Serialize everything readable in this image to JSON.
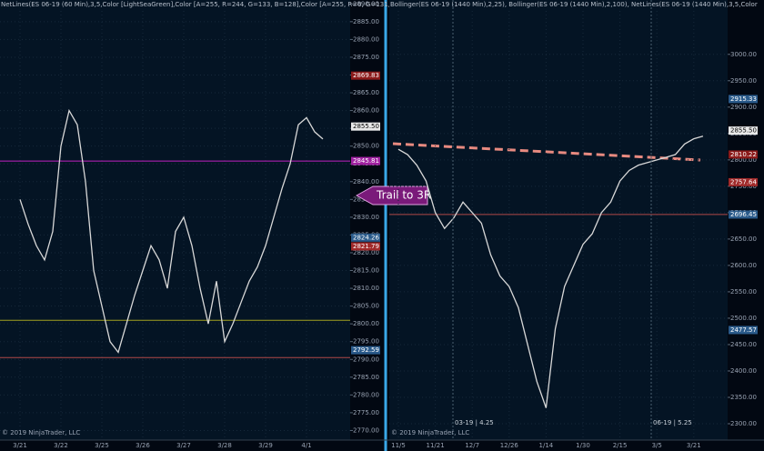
{
  "chart_data": [
    {
      "type": "line",
      "title": "NetLines(ES 06-19 (60 Min),3,5,Color [LightSeaGreen],Color [A=255, R=244, G=133, B=128],Color [A=255, R=0, G=131,",
      "footer": "© 2019 NinjaTrader, LLC",
      "annotations": [
        "Trail to 3R"
      ],
      "categories": [
        "3/21",
        null,
        null,
        null,
        null,
        "3/22",
        null,
        null,
        null,
        null,
        "3/25",
        null,
        null,
        null,
        null,
        "3/26",
        null,
        null,
        null,
        null,
        "3/27",
        null,
        null,
        null,
        null,
        "3/28",
        null,
        null,
        null,
        null,
        "3/29",
        null,
        null,
        null,
        null,
        "4/1",
        null,
        null
      ],
      "values": [
        2835,
        2828,
        2822,
        2818,
        2826,
        2850,
        2860,
        2856,
        2840,
        2815,
        2805,
        2795,
        2792,
        2800,
        2808,
        2815,
        2822,
        2818,
        2810,
        2826,
        2830,
        2822,
        2810,
        2800,
        2812,
        2795,
        2800,
        2806,
        2812,
        2816,
        2822,
        2830,
        2838,
        2845,
        2856,
        2858,
        2854,
        2852
      ],
      "color": "#d8d8d8",
      "ylim": [
        2767.3,
        2891.1
      ],
      "yticks": [
        {
          "value": 2770,
          "label": "2770.00"
        },
        {
          "value": 2775,
          "label": "2775.00"
        },
        {
          "value": 2780,
          "label": "2780.00"
        },
        {
          "value": 2785,
          "label": "2785.00"
        },
        {
          "value": 2790,
          "label": "2790.00"
        },
        {
          "value": 2795,
          "label": "2795.00"
        },
        {
          "value": 2800,
          "label": "2800.00"
        },
        {
          "value": 2805,
          "label": "2805.00"
        },
        {
          "value": 2810,
          "label": "2810.00"
        },
        {
          "value": 2815,
          "label": "2815.00"
        },
        {
          "value": 2820,
          "label": "2820.00"
        },
        {
          "value": 2825,
          "label": "2825.00"
        },
        {
          "value": 2830,
          "label": "2830.00"
        },
        {
          "value": 2835,
          "label": "2835.00"
        },
        {
          "value": 2840,
          "label": "2840.00"
        },
        {
          "value": 2845,
          "label": "2845.00"
        },
        {
          "value": 2850,
          "label": "2850.00"
        },
        {
          "value": 2855,
          "label": "2855.00"
        },
        {
          "value": 2860,
          "label": "2860.00"
        },
        {
          "value": 2865,
          "label": "2865.00"
        },
        {
          "value": 2870,
          "label": "2870.00"
        },
        {
          "value": 2875,
          "label": "2875.00"
        },
        {
          "value": 2880,
          "label": "2880.00"
        },
        {
          "value": 2885,
          "label": "2885.00"
        },
        {
          "value": 2890,
          "label": "2890.00"
        }
      ],
      "levels": [
        {
          "value": 2845.81,
          "color": "#c020c0"
        },
        {
          "value": 2801,
          "color": "#a0a020"
        },
        {
          "value": 2790.5,
          "color": "#b04848"
        }
      ],
      "price_tags": [
        {
          "value": 2869.83,
          "label": "2869.83",
          "color": "#8b1a1a"
        },
        {
          "value": 2855.5,
          "label": "2855.50",
          "color": "#e8e8e8"
        },
        {
          "value": 2845.81,
          "label": "2845.81",
          "color": "#a020a0"
        },
        {
          "value": 2824.26,
          "label": "2824.26",
          "color": "#2a5a8a"
        },
        {
          "value": 2821.79,
          "label": "2821.79",
          "color": "#a02a2a"
        },
        {
          "value": 2792.59,
          "label": "2792.59",
          "color": "#2a5a8a"
        }
      ]
    },
    {
      "type": "line",
      "title": "Bollinger(ES 06-19 (1440 Min),2,25), Bollinger(ES 06-19 (1440 Min),2,100), NetLines(ES 06-19 (1440 Min),3,5,Color",
      "footer": "© 2019 NinjaTrader, LLC",
      "annotations": [
        "03-19 | 4.25",
        "06-19 | 5.25"
      ],
      "categories": [
        "11/5",
        null,
        null,
        null,
        "11/21",
        null,
        null,
        null,
        "12/7",
        null,
        null,
        null,
        "12/26",
        null,
        null,
        null,
        "1/14",
        null,
        null,
        null,
        "1/30",
        null,
        null,
        null,
        "2/15",
        null,
        null,
        null,
        "3/5",
        null,
        null,
        null,
        "3/21",
        null
      ],
      "values": [
        2820,
        2810,
        2790,
        2760,
        2700,
        2670,
        2690,
        2720,
        2700,
        2680,
        2620,
        2580,
        2560,
        2520,
        2450,
        2380,
        2330,
        2480,
        2560,
        2600,
        2640,
        2660,
        2700,
        2720,
        2760,
        2780,
        2790,
        2795,
        2800,
        2805,
        2810,
        2830,
        2840,
        2845
      ],
      "color": "#d8d8d8",
      "ylim": [
        2269,
        3103
      ],
      "yticks": [
        {
          "value": 2300,
          "label": "2300.00"
        },
        {
          "value": 2350,
          "label": "2350.00"
        },
        {
          "value": 2400,
          "label": "2400.00"
        },
        {
          "value": 2450,
          "label": "2450.00"
        },
        {
          "value": 2500,
          "label": "2500.00"
        },
        {
          "value": 2550,
          "label": "2550.00"
        },
        {
          "value": 2600,
          "label": "2600.00"
        },
        {
          "value": 2650,
          "label": "2650.00"
        },
        {
          "value": 2700,
          "label": "2700.00"
        },
        {
          "value": 2750,
          "label": "2750.00"
        },
        {
          "value": 2800,
          "label": "2800.00"
        },
        {
          "value": 2850,
          "label": "2850.00"
        },
        {
          "value": 2900,
          "label": "2900.00"
        },
        {
          "value": 2950,
          "label": "2950.00"
        },
        {
          "value": 3000,
          "label": "3000.00"
        }
      ],
      "levels": [
        {
          "value": 2696.45,
          "color": "#b04848"
        }
      ],
      "price_tags": [
        {
          "value": 2915.33,
          "label": "2915.33",
          "color": "#2a5a8a"
        },
        {
          "value": 2855.5,
          "label": "2855.50",
          "color": "#e8e8e8"
        },
        {
          "value": 2810.22,
          "label": "2810.22",
          "color": "#8b1a1a"
        },
        {
          "value": 2757.64,
          "label": "2757.64",
          "color": "#a02a2a"
        },
        {
          "value": 2696.45,
          "label": "2696.45",
          "color": "#2a5a8a"
        },
        {
          "value": 2477.57,
          "label": "2477.57",
          "color": "#2a5a8a"
        }
      ]
    }
  ]
}
